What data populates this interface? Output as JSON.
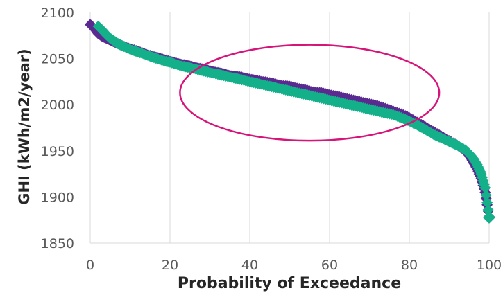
{
  "chart_data": {
    "type": "scatter",
    "title": "",
    "xlabel": "Probability of Exceedance",
    "ylabel": "GHI (kWh/m2/year)",
    "xlim": [
      0,
      100
    ],
    "ylim": [
      1850,
      2100
    ],
    "x_ticks": [
      "0",
      "20",
      "40",
      "60",
      "80",
      "100"
    ],
    "y_ticks": [
      "1850",
      "1900",
      "1950",
      "2000",
      "2050",
      "2100"
    ],
    "grid": "vertical",
    "legend": "none",
    "series": [
      {
        "color": "#5b2a91",
        "marker": "diamond",
        "points": [
          [
            0,
            2087
          ],
          [
            1,
            2083
          ],
          [
            2,
            2077
          ],
          [
            3,
            2074
          ],
          [
            4,
            2072
          ],
          [
            5,
            2070
          ],
          [
            6,
            2068
          ],
          [
            7,
            2066
          ],
          [
            8,
            2064
          ],
          [
            10,
            2061
          ],
          [
            12,
            2058
          ],
          [
            14,
            2055
          ],
          [
            16,
            2052
          ],
          [
            18,
            2050
          ],
          [
            20,
            2047
          ],
          [
            22,
            2045
          ],
          [
            24,
            2043
          ],
          [
            26,
            2041
          ],
          [
            28,
            2039
          ],
          [
            30,
            2037
          ],
          [
            32,
            2035
          ],
          [
            34,
            2033
          ],
          [
            36,
            2031
          ],
          [
            38,
            2030
          ],
          [
            40,
            2028
          ],
          [
            42,
            2026
          ],
          [
            44,
            2025
          ],
          [
            46,
            2023
          ],
          [
            48,
            2021
          ],
          [
            50,
            2020
          ],
          [
            52,
            2018
          ],
          [
            54,
            2016
          ],
          [
            56,
            2014
          ],
          [
            58,
            2013
          ],
          [
            60,
            2011
          ],
          [
            62,
            2009
          ],
          [
            64,
            2007
          ],
          [
            66,
            2005
          ],
          [
            68,
            2003
          ],
          [
            70,
            2001
          ],
          [
            72,
            1999
          ],
          [
            74,
            1996
          ],
          [
            76,
            1993
          ],
          [
            78,
            1990
          ],
          [
            80,
            1986
          ],
          [
            82,
            1981
          ],
          [
            84,
            1976
          ],
          [
            86,
            1971
          ],
          [
            88,
            1966
          ],
          [
            90,
            1961
          ],
          [
            92,
            1956
          ],
          [
            94,
            1950
          ],
          [
            95,
            1945
          ],
          [
            96,
            1938
          ],
          [
            97,
            1930
          ],
          [
            98,
            1920
          ],
          [
            99,
            1905
          ],
          [
            100,
            1878
          ]
        ]
      },
      {
        "color": "#14b08a",
        "marker": "diamond",
        "points": [
          [
            2,
            2085
          ],
          [
            3,
            2081
          ],
          [
            4,
            2076
          ],
          [
            5,
            2072
          ],
          [
            6,
            2069
          ],
          [
            7,
            2066
          ],
          [
            8,
            2064
          ],
          [
            10,
            2060
          ],
          [
            12,
            2057
          ],
          [
            14,
            2054
          ],
          [
            16,
            2051
          ],
          [
            18,
            2048
          ],
          [
            20,
            2046
          ],
          [
            22,
            2043
          ],
          [
            24,
            2041
          ],
          [
            26,
            2039
          ],
          [
            28,
            2037
          ],
          [
            30,
            2035
          ],
          [
            32,
            2033
          ],
          [
            34,
            2031
          ],
          [
            36,
            2029
          ],
          [
            38,
            2027
          ],
          [
            40,
            2025
          ],
          [
            42,
            2023
          ],
          [
            44,
            2021
          ],
          [
            46,
            2019
          ],
          [
            48,
            2017
          ],
          [
            50,
            2015
          ],
          [
            52,
            2013
          ],
          [
            54,
            2011
          ],
          [
            56,
            2009
          ],
          [
            58,
            2007
          ],
          [
            60,
            2005
          ],
          [
            62,
            2003
          ],
          [
            64,
            2001
          ],
          [
            66,
            1999
          ],
          [
            68,
            1997
          ],
          [
            70,
            1995
          ],
          [
            72,
            1993
          ],
          [
            74,
            1991
          ],
          [
            76,
            1989
          ],
          [
            78,
            1986
          ],
          [
            80,
            1982
          ],
          [
            82,
            1978
          ],
          [
            84,
            1973
          ],
          [
            86,
            1968
          ],
          [
            88,
            1964
          ],
          [
            90,
            1960
          ],
          [
            92,
            1956
          ],
          [
            94,
            1951
          ],
          [
            95,
            1947
          ],
          [
            96,
            1942
          ],
          [
            97,
            1935
          ],
          [
            98,
            1925
          ],
          [
            99,
            1910
          ],
          [
            100,
            1878
          ]
        ]
      }
    ],
    "annotation": {
      "shape": "ellipse",
      "color": "#d6157a",
      "cx": 55,
      "cy": 2013,
      "rx": 32.5,
      "ry": 52
    }
  }
}
